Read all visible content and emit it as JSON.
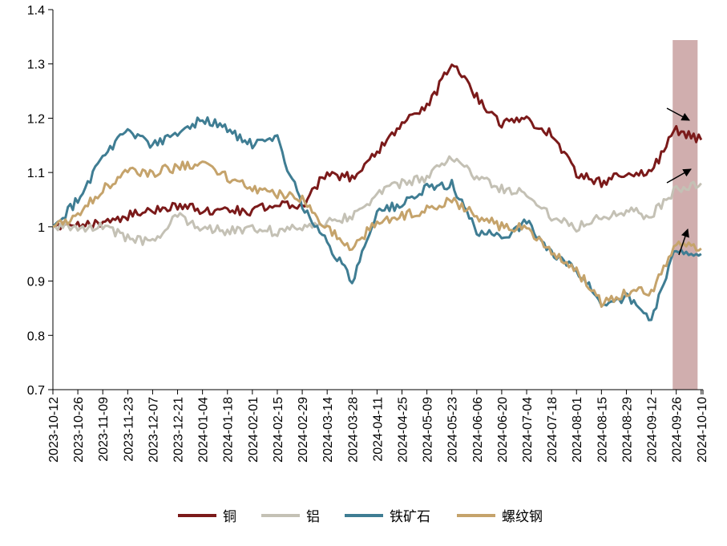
{
  "chart_data": {
    "type": "line",
    "title": "",
    "xlabel": "",
    "ylabel": "",
    "ylim": [
      0.7,
      1.4
    ],
    "yticks": [
      "0.7",
      "0.8",
      "0.9",
      "1",
      "1.1",
      "1.2",
      "1.3",
      "1.4"
    ],
    "x": [
      "2023-10-12",
      "2023-10-26",
      "2023-11-09",
      "2023-11-23",
      "2023-12-07",
      "2023-12-21",
      "2024-01-04",
      "2024-01-18",
      "2024-02-01",
      "2024-02-15",
      "2024-02-29",
      "2024-03-14",
      "2024-03-28",
      "2024-04-11",
      "2024-04-25",
      "2024-05-09",
      "2024-05-23",
      "2024-06-06",
      "2024-06-20",
      "2024-07-04",
      "2024-07-18",
      "2024-08-01",
      "2024-08-15",
      "2024-08-29",
      "2024-09-12",
      "2024-09-26",
      "2024-10-10"
    ],
    "grid": false,
    "legend_position": "bottom",
    "highlight": {
      "from": "2024-09-24",
      "to": "2024-10-08",
      "color": "#c8a0a0"
    },
    "colors": {
      "铜": "#7b1a1a",
      "铝": "#c4c1b5",
      "铁矿石": "#3f7d93",
      "螺纹钢": "#c5a36b"
    },
    "series": [
      {
        "name": "铜",
        "values": [
          1.0,
          1.0,
          1.01,
          1.02,
          1.03,
          1.04,
          1.03,
          1.03,
          1.03,
          1.04,
          1.04,
          1.1,
          1.09,
          1.14,
          1.19,
          1.22,
          1.3,
          1.24,
          1.19,
          1.2,
          1.17,
          1.1,
          1.08,
          1.1,
          1.1,
          1.18,
          1.16
        ]
      },
      {
        "name": "铝",
        "values": [
          1.0,
          1.0,
          1.0,
          0.98,
          0.97,
          1.02,
          1.0,
          0.99,
          1.0,
          0.99,
          1.0,
          1.01,
          1.02,
          1.06,
          1.08,
          1.09,
          1.13,
          1.09,
          1.07,
          1.06,
          1.02,
          1.0,
          1.02,
          1.03,
          1.02,
          1.07,
          1.08
        ]
      },
      {
        "name": "铁矿石",
        "values": [
          1.0,
          1.05,
          1.13,
          1.18,
          1.15,
          1.17,
          1.2,
          1.18,
          1.15,
          1.16,
          1.04,
          0.97,
          0.9,
          1.03,
          1.04,
          1.07,
          1.08,
          0.99,
          0.98,
          1.01,
          0.95,
          0.92,
          0.86,
          0.87,
          0.83,
          0.96,
          0.95
        ]
      },
      {
        "name": "螺纹钢",
        "values": [
          1.0,
          1.02,
          1.07,
          1.1,
          1.1,
          1.11,
          1.12,
          1.09,
          1.07,
          1.06,
          1.05,
          1.0,
          0.96,
          1.01,
          1.02,
          1.03,
          1.05,
          1.02,
          1.0,
          1.0,
          0.95,
          0.92,
          0.86,
          0.88,
          0.88,
          0.97,
          0.96
        ]
      }
    ]
  }
}
